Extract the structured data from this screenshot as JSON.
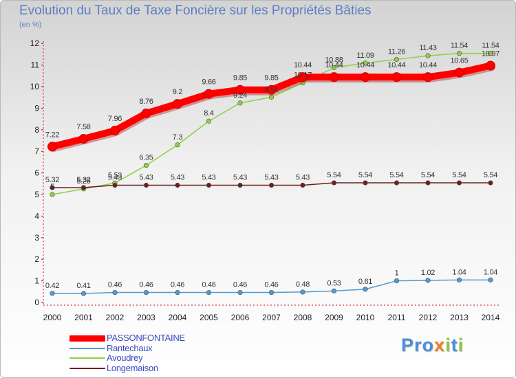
{
  "title": "Evolution du Taux de Taxe Foncière sur les Propriétés Bâties",
  "unit": "(en %)",
  "logo": "Proxiti",
  "chart_data": {
    "type": "line",
    "title": "Evolution du Taux de Taxe Foncière sur les Propriétés Bâties",
    "ylabel": "(en %)",
    "xlabel": "",
    "ylim": [
      0,
      12
    ],
    "yticks": [
      "0",
      "1",
      "2",
      "3",
      "4",
      "5",
      "6",
      "7",
      "8",
      "9",
      "10",
      "11",
      "12"
    ],
    "categories": [
      "2000",
      "2001",
      "2002",
      "2003",
      "2004",
      "2005",
      "2006",
      "2007",
      "2008",
      "2009",
      "2010",
      "2011",
      "2012",
      "2013",
      "2014"
    ],
    "series": [
      {
        "name": "PASSONFONTAINE",
        "color": "#ff0000",
        "values": [
          7.22,
          7.58,
          7.96,
          8.76,
          9.2,
          9.66,
          9.85,
          9.85,
          10.44,
          10.44,
          10.44,
          10.44,
          10.44,
          10.65,
          10.97
        ],
        "labels": [
          "7.22",
          "7.58",
          "7.96",
          "8.76",
          "9.2",
          "9.66",
          "9.85",
          "9.85",
          "10.44",
          "10.44",
          "10.44",
          "10.44",
          "10.44",
          "10.65",
          "10.97"
        ]
      },
      {
        "name": "Rantechaux",
        "color": "#4f9bd1",
        "values": [
          0.42,
          0.41,
          0.46,
          0.46,
          0.46,
          0.46,
          0.46,
          0.46,
          0.48,
          0.53,
          0.61,
          1,
          1.02,
          1.04,
          1.04
        ],
        "labels": [
          "0.42",
          "0.41",
          "0.46",
          "0.46",
          "0.46",
          "0.46",
          "0.46",
          "0.46",
          "0.48",
          "0.53",
          "0.61",
          "1",
          "1.02",
          "1.04",
          "1.04"
        ]
      },
      {
        "name": "Avoudrey",
        "color": "#8ed03f",
        "values": [
          5,
          5.26,
          5.53,
          6.35,
          7.3,
          8.4,
          9.24,
          9.51,
          10.17,
          10.88,
          11.09,
          11.26,
          11.43,
          11.54,
          11.54
        ],
        "labels": [
          "5",
          "5.26",
          "5.53",
          "6.35",
          "7.3",
          "8.4",
          "9.24",
          "9.51",
          "10.17",
          "10.88",
          "11.09",
          "11.26",
          "11.43",
          "11.54",
          "11.54"
        ]
      },
      {
        "name": "Longemaison",
        "color": "#6b1f1f",
        "values": [
          5.32,
          5.32,
          5.43,
          5.43,
          5.43,
          5.43,
          5.43,
          5.43,
          5.43,
          5.54,
          5.54,
          5.54,
          5.54,
          5.54,
          5.54
        ],
        "labels": [
          "5.32",
          "5.32",
          "5.43",
          "5.43",
          "5.43",
          "5.43",
          "5.43",
          "5.43",
          "5.43",
          "5.54",
          "5.54",
          "5.54",
          "5.54",
          "5.54",
          "5.54"
        ]
      }
    ],
    "legend_position": "bottom-left"
  }
}
